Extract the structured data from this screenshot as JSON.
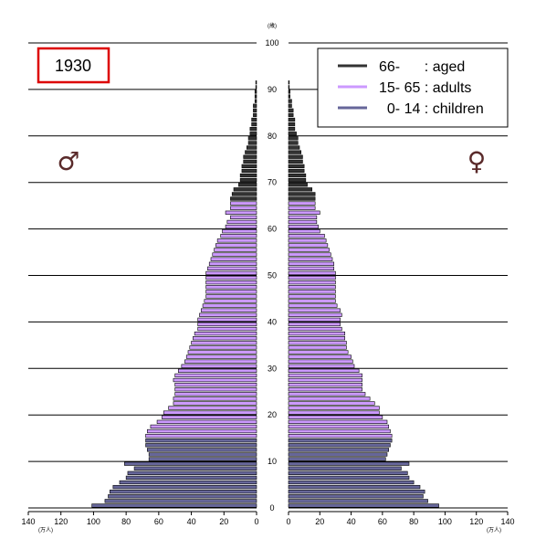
{
  "chart_data": {
    "type": "bar",
    "subtype": "population-pyramid",
    "year_label": "1930",
    "male_symbol": "♂",
    "female_symbol": "♀",
    "age_unit": "(歳)",
    "pop_unit": "(万人)",
    "x_ticks": [
      140,
      120,
      100,
      80,
      60,
      40,
      20,
      0
    ],
    "y_ticks": [
      0,
      10,
      20,
      30,
      40,
      50,
      60,
      70,
      80,
      90,
      100
    ],
    "xlim": [
      0,
      140
    ],
    "ylim": [
      0,
      100
    ],
    "colors": {
      "aged": "#333333",
      "adults": "#cc99ff",
      "children": "#666699",
      "legend_aged": "#333333",
      "legend_adults": "#cc99ff",
      "legend_children": "#666699",
      "year_box": "#dd0000",
      "divider": "#000000"
    },
    "legend": [
      {
        "key": "aged",
        "label": "66-      : aged"
      },
      {
        "key": "adults",
        "label": "15- 65 : adults"
      },
      {
        "key": "children",
        "label": "  0- 14 : children"
      }
    ],
    "male": [
      101,
      93,
      91,
      90,
      88,
      84,
      80,
      79,
      75,
      81,
      66,
      66,
      67,
      68,
      68,
      68,
      67,
      65,
      61,
      58,
      57,
      54,
      51,
      51,
      50,
      50,
      50,
      51,
      50,
      48,
      46,
      44,
      43,
      42,
      41,
      40,
      39,
      38,
      36,
      36,
      36,
      35,
      34,
      33,
      32,
      31,
      31,
      31,
      31,
      31,
      31,
      30,
      29,
      28,
      27,
      26,
      25,
      24,
      22,
      21,
      19,
      18,
      16,
      19,
      16,
      16,
      16,
      15,
      14,
      11,
      10,
      10,
      9,
      9,
      8,
      8,
      7,
      6,
      5,
      5,
      4,
      4,
      3,
      3,
      2,
      2,
      2,
      1,
      1,
      1,
      0.5,
      0.5
    ],
    "female": [
      96,
      89,
      86,
      87,
      84,
      80,
      77,
      76,
      72,
      77,
      62,
      63,
      64,
      65,
      66,
      66,
      65,
      64,
      63,
      60,
      58,
      58,
      55,
      52,
      49,
      47,
      47,
      47,
      47,
      45,
      42,
      41,
      40,
      38,
      37,
      37,
      36,
      36,
      34,
      33,
      33,
      34,
      33,
      31,
      30,
      30,
      30,
      30,
      30,
      30,
      30,
      29,
      29,
      28,
      27,
      26,
      25,
      24,
      23,
      20,
      19,
      18,
      18,
      20,
      17,
      17,
      17,
      17,
      15,
      12,
      11,
      11,
      10,
      10,
      9,
      9,
      8,
      7,
      6,
      6,
      5,
      4,
      4,
      4,
      3,
      3,
      2,
      2,
      1,
      1,
      0.5,
      0.5
    ]
  }
}
